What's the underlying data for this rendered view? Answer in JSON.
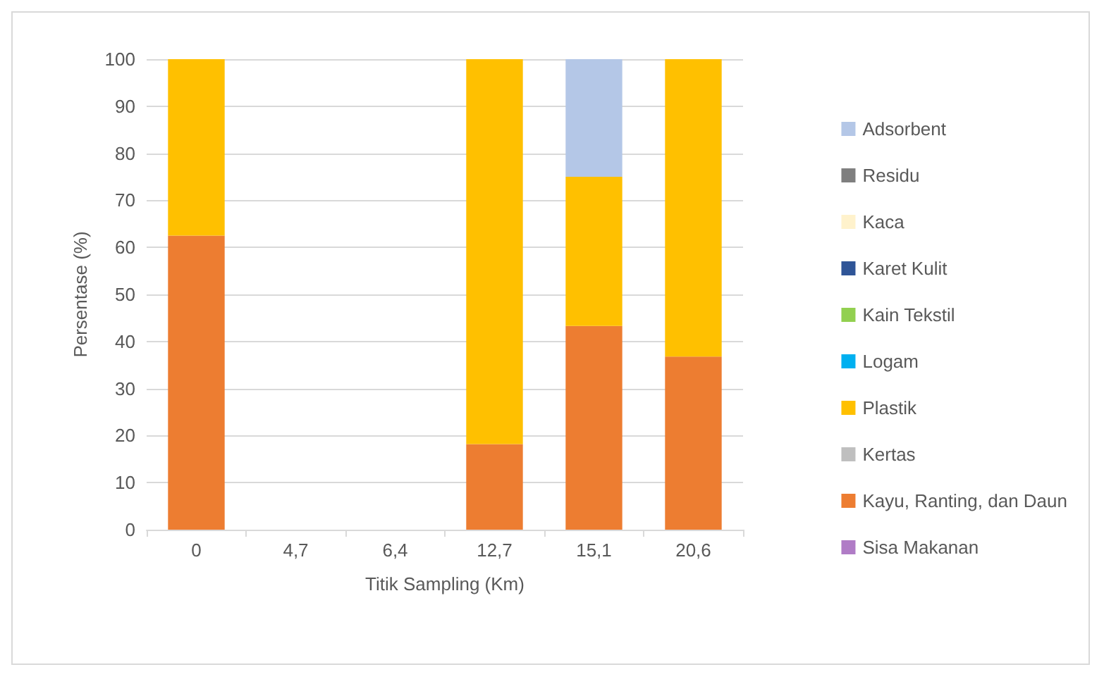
{
  "chart_data": {
    "type": "bar",
    "stacked": true,
    "xlabel": "Titik Sampling (Km)",
    "ylabel": "Persentase (%)",
    "categories": [
      "0",
      "4,7",
      "6,4",
      "12,7",
      "15,1",
      "20,6"
    ],
    "ylim": [
      0,
      100
    ],
    "yticks": [
      0,
      10,
      20,
      30,
      40,
      50,
      60,
      70,
      80,
      90,
      100
    ],
    "grid": "y",
    "legend": "right",
    "series": [
      {
        "name": "Sisa Makanan",
        "color": "#b07cc6",
        "values": [
          0,
          0,
          0,
          0,
          0,
          0
        ]
      },
      {
        "name": "Kayu, Ranting, dan Daun",
        "color": "#ed7d31",
        "values": [
          62.5,
          0,
          0,
          18.2,
          43.3,
          36.8
        ]
      },
      {
        "name": "Kertas",
        "color": "#bfbfbf",
        "values": [
          0,
          0,
          0,
          0,
          0,
          0
        ]
      },
      {
        "name": "Plastik",
        "color": "#ffc000",
        "values": [
          37.5,
          0,
          0,
          81.8,
          31.7,
          63.2
        ]
      },
      {
        "name": "Logam",
        "color": "#00b0f0",
        "values": [
          0,
          0,
          0,
          0,
          0,
          0
        ]
      },
      {
        "name": "Kain Tekstil",
        "color": "#92d050",
        "values": [
          0,
          0,
          0,
          0,
          0,
          0
        ]
      },
      {
        "name": "Karet Kulit",
        "color": "#2f5597",
        "values": [
          0,
          0,
          0,
          0,
          0,
          0
        ]
      },
      {
        "name": "Kaca",
        "color": "#fff2cc",
        "values": [
          0,
          0,
          0,
          0,
          0,
          0
        ]
      },
      {
        "name": "Residu",
        "color": "#7f7f7f",
        "values": [
          0,
          0,
          0,
          0,
          0,
          0
        ]
      },
      {
        "name": "Adsorbent",
        "color": "#b4c7e7",
        "values": [
          0,
          0,
          0,
          0,
          25,
          0
        ]
      }
    ]
  }
}
